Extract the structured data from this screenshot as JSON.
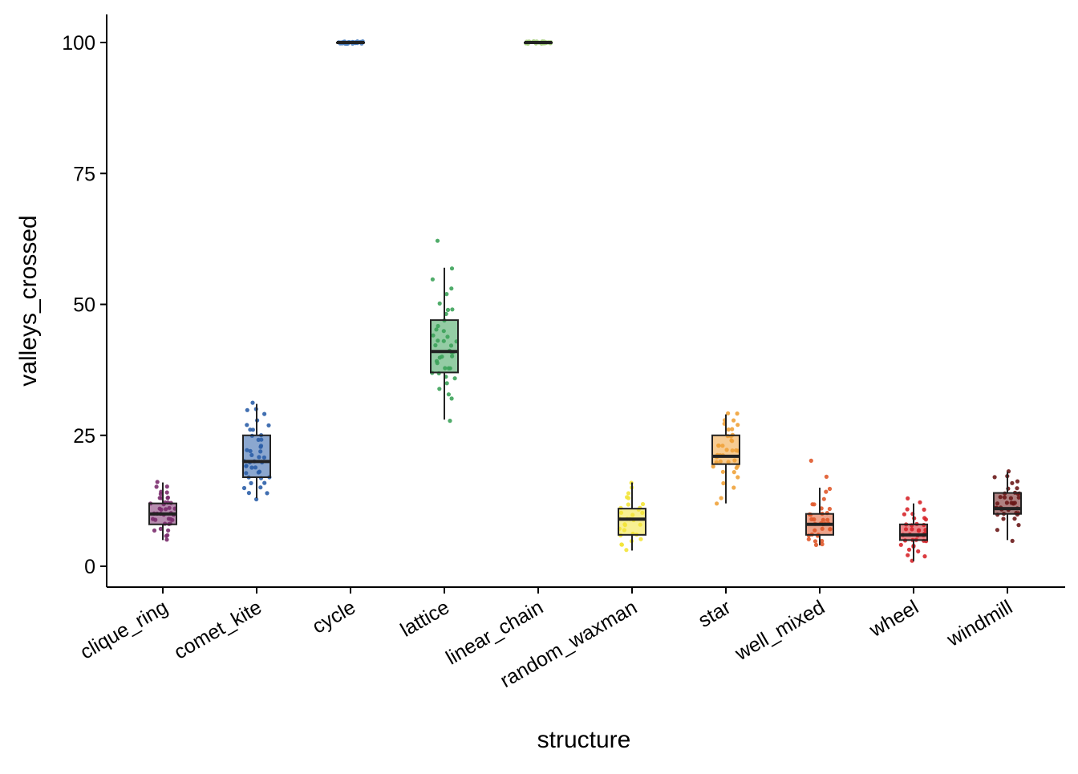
{
  "chart_data": {
    "type": "box",
    "xlabel": "structure",
    "ylabel": "valleys_crossed",
    "ylim": [
      -4,
      105
    ],
    "yticks": [
      0,
      25,
      50,
      75,
      100
    ],
    "ytick_labels": [
      "0",
      "25",
      "50",
      "75",
      "100"
    ],
    "grid": false,
    "legend": "none",
    "categories": [
      "clique_ring",
      "comet_kite",
      "cycle",
      "lattice",
      "linear_chain",
      "random_waxman",
      "star",
      "well_mixed",
      "wheel",
      "windmill"
    ],
    "series": [
      {
        "category": "clique_ring",
        "color": "#7b2d6e",
        "min": 5,
        "q1": 8,
        "median": 10,
        "q3": 12,
        "max": 16,
        "points": [
          5,
          6,
          6,
          7,
          7,
          8,
          8,
          8,
          9,
          9,
          9,
          9,
          10,
          10,
          10,
          10,
          10,
          11,
          11,
          11,
          11,
          12,
          12,
          12,
          12,
          13,
          13,
          13,
          14,
          14,
          15,
          15,
          16,
          7,
          9,
          10,
          11,
          12,
          13,
          14
        ]
      },
      {
        "category": "comet_kite",
        "color": "#2c5fa8",
        "min": 13,
        "q1": 17,
        "median": 20,
        "q3": 25,
        "max": 31,
        "points": [
          13,
          14,
          14,
          15,
          15,
          16,
          16,
          17,
          17,
          17,
          18,
          18,
          19,
          19,
          19,
          20,
          20,
          20,
          20,
          21,
          21,
          21,
          22,
          22,
          23,
          23,
          24,
          24,
          25,
          25,
          26,
          26,
          27,
          27,
          28,
          29,
          30,
          30,
          31,
          18,
          19,
          22
        ]
      },
      {
        "category": "cycle",
        "color": "#4a7fc1",
        "min": 100,
        "q1": 100,
        "median": 100,
        "q3": 100,
        "max": 100,
        "points": [
          100,
          100,
          100,
          100,
          100,
          100,
          100,
          100,
          100,
          100,
          100,
          100,
          100,
          100,
          100,
          100,
          100,
          100,
          100,
          100,
          100,
          100,
          100,
          100,
          100,
          100,
          100,
          100,
          100,
          100
        ]
      },
      {
        "category": "lattice",
        "color": "#3da35a",
        "min": 28,
        "q1": 37,
        "median": 41,
        "q3": 47,
        "max": 57,
        "points": [
          28,
          32,
          33,
          34,
          35,
          36,
          36,
          37,
          37,
          38,
          38,
          39,
          39,
          40,
          40,
          41,
          41,
          41,
          42,
          42,
          43,
          43,
          44,
          44,
          45,
          46,
          47,
          48,
          49,
          49,
          50,
          52,
          53,
          55,
          57,
          62,
          38,
          40,
          43,
          45
        ]
      },
      {
        "category": "linear_chain",
        "color": "#a6cf7e",
        "min": 100,
        "q1": 100,
        "median": 100,
        "q3": 100,
        "max": 100,
        "points": [
          100,
          100,
          100,
          100,
          100,
          100,
          100,
          100,
          100,
          100,
          100,
          100,
          100,
          100,
          100,
          100,
          100,
          100,
          100,
          100,
          100,
          100,
          100,
          100,
          100,
          100,
          100,
          100,
          100,
          100
        ]
      },
      {
        "category": "random_waxman",
        "color": "#f3e43a",
        "min": 3,
        "q1": 6,
        "median": 9,
        "q3": 11,
        "max": 16,
        "points": [
          3,
          4,
          4,
          5,
          5,
          6,
          6,
          7,
          7,
          8,
          8,
          8,
          9,
          9,
          9,
          10,
          10,
          10,
          11,
          11,
          12,
          12,
          13,
          14,
          15,
          16,
          6,
          9,
          11,
          13
        ]
      },
      {
        "category": "star",
        "color": "#f0a23a",
        "min": 12,
        "q1": 19.5,
        "median": 21,
        "q3": 25,
        "max": 29,
        "points": [
          12,
          13,
          15,
          16,
          17,
          18,
          18,
          19,
          19,
          20,
          20,
          20,
          21,
          21,
          21,
          22,
          22,
          22,
          23,
          23,
          24,
          24,
          25,
          25,
          26,
          26,
          27,
          27,
          28,
          28,
          29,
          29,
          19,
          21,
          23,
          25,
          22,
          20
        ]
      },
      {
        "category": "well_mixed",
        "color": "#e0592b",
        "min": 4,
        "q1": 6,
        "median": 8,
        "q3": 10,
        "max": 15,
        "points": [
          4,
          4,
          5,
          5,
          5,
          6,
          6,
          6,
          7,
          7,
          7,
          8,
          8,
          8,
          8,
          9,
          9,
          9,
          10,
          10,
          10,
          11,
          11,
          12,
          12,
          13,
          14,
          15,
          17,
          20,
          6,
          7,
          8,
          9,
          10
        ]
      },
      {
        "category": "wheel",
        "color": "#d7262b",
        "min": 1,
        "q1": 5,
        "median": 6,
        "q3": 8,
        "max": 12,
        "points": [
          1,
          2,
          2,
          3,
          3,
          4,
          4,
          4,
          5,
          5,
          5,
          5,
          6,
          6,
          6,
          6,
          6,
          7,
          7,
          7,
          7,
          8,
          8,
          8,
          9,
          9,
          10,
          10,
          11,
          11,
          12,
          13,
          5,
          6,
          7,
          8,
          9
        ]
      },
      {
        "category": "windmill",
        "color": "#6b1a1a",
        "min": 5,
        "q1": 10,
        "median": 11,
        "q3": 14,
        "max": 18,
        "points": [
          5,
          7,
          8,
          9,
          9,
          10,
          10,
          10,
          10,
          11,
          11,
          11,
          11,
          11,
          12,
          12,
          12,
          12,
          13,
          13,
          13,
          14,
          14,
          14,
          15,
          15,
          16,
          16,
          17,
          17,
          18,
          10,
          11,
          12,
          13,
          14,
          11,
          12
        ]
      }
    ]
  }
}
